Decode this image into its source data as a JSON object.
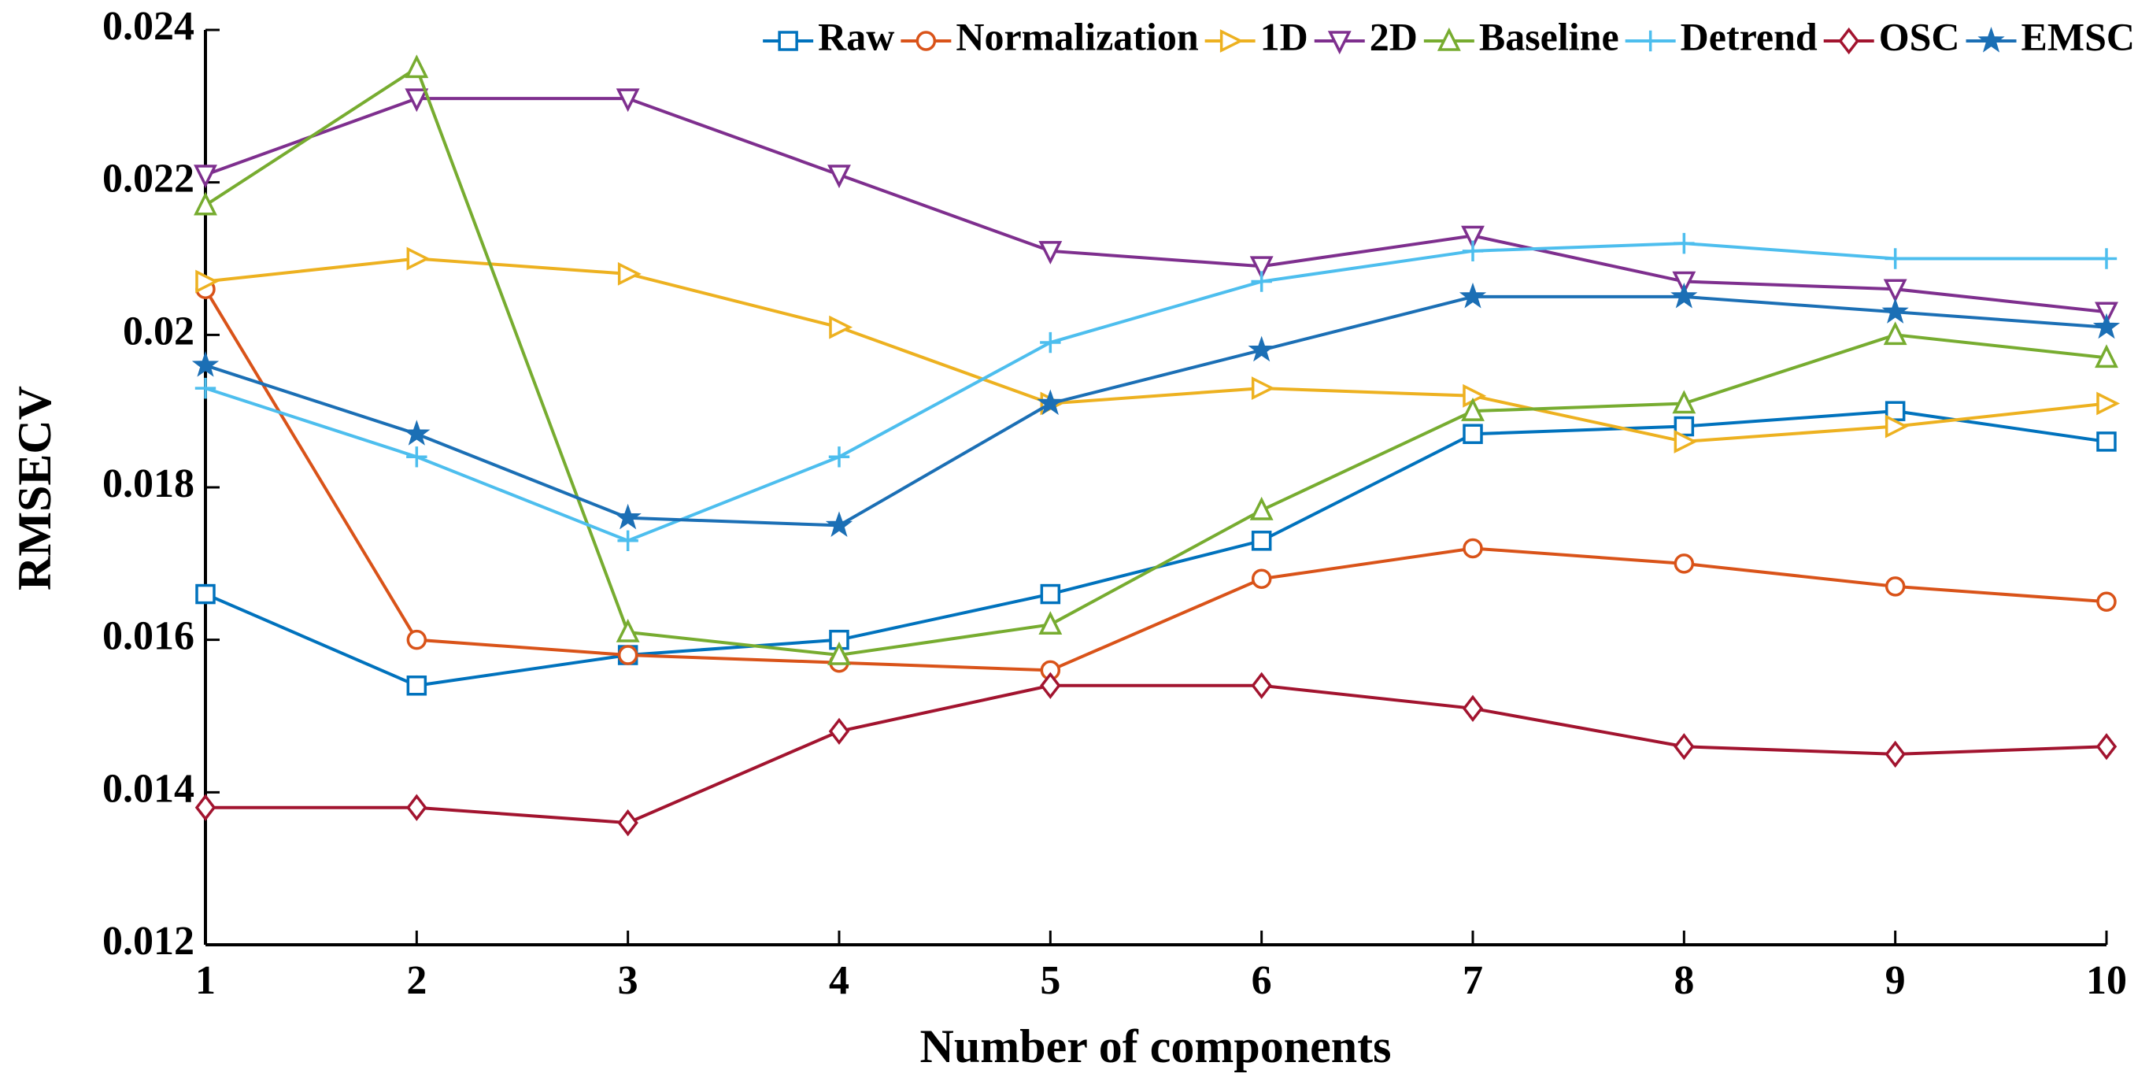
{
  "chart_data": {
    "type": "line",
    "xlabel": "Number of components",
    "ylabel": "RMSECV",
    "x": [
      1,
      2,
      3,
      4,
      5,
      6,
      7,
      8,
      9,
      10
    ],
    "xlim": [
      1,
      10
    ],
    "xticks": [
      1,
      2,
      3,
      4,
      5,
      6,
      7,
      8,
      9,
      10
    ],
    "ylim": [
      0.012,
      0.024
    ],
    "yticks": [
      0.012,
      0.014,
      0.016,
      0.018,
      0.02,
      0.022,
      0.024
    ],
    "legend": "top-right",
    "series": [
      {
        "name": "Raw",
        "color": "#0072bd",
        "marker": "square",
        "values": [
          0.0166,
          0.0154,
          0.0158,
          0.016,
          0.0166,
          0.0173,
          0.0187,
          0.0188,
          0.019,
          0.0186
        ]
      },
      {
        "name": "Normalization",
        "color": "#d95319",
        "marker": "circle",
        "values": [
          0.0206,
          0.016,
          0.0158,
          0.0157,
          0.0156,
          0.0168,
          0.0172,
          0.017,
          0.0167,
          0.0165
        ]
      },
      {
        "name": "1D",
        "color": "#edb120",
        "marker": "triangle-right",
        "values": [
          0.0207,
          0.021,
          0.0208,
          0.0201,
          0.0191,
          0.0193,
          0.0192,
          0.0186,
          0.0188,
          0.0191
        ]
      },
      {
        "name": "2D",
        "color": "#7e2f8e",
        "marker": "triangle-down",
        "values": [
          0.0221,
          0.0231,
          0.0231,
          0.0221,
          0.0211,
          0.0209,
          0.0213,
          0.0207,
          0.0206,
          0.0203
        ]
      },
      {
        "name": "Baseline",
        "color": "#77ac30",
        "marker": "triangle-up",
        "values": [
          0.0217,
          0.0235,
          0.0161,
          0.0158,
          0.0162,
          0.0177,
          0.019,
          0.0191,
          0.02,
          0.0197
        ]
      },
      {
        "name": "Detrend",
        "color": "#4dbeee",
        "marker": "plus",
        "values": [
          0.0193,
          0.0184,
          0.0173,
          0.0184,
          0.0199,
          0.0207,
          0.0211,
          0.0212,
          0.021,
          0.021
        ]
      },
      {
        "name": "OSC",
        "color": "#a2142f",
        "marker": "diamond",
        "values": [
          0.0138,
          0.0138,
          0.0136,
          0.0148,
          0.0154,
          0.0154,
          0.0151,
          0.0146,
          0.0145,
          0.0146
        ]
      },
      {
        "name": "EMSC",
        "color": "#1b6fb5",
        "marker": "star",
        "values": [
          0.0196,
          0.0187,
          0.0176,
          0.0175,
          0.0191,
          0.0198,
          0.0205,
          0.0205,
          0.0203,
          0.0201
        ]
      }
    ]
  }
}
